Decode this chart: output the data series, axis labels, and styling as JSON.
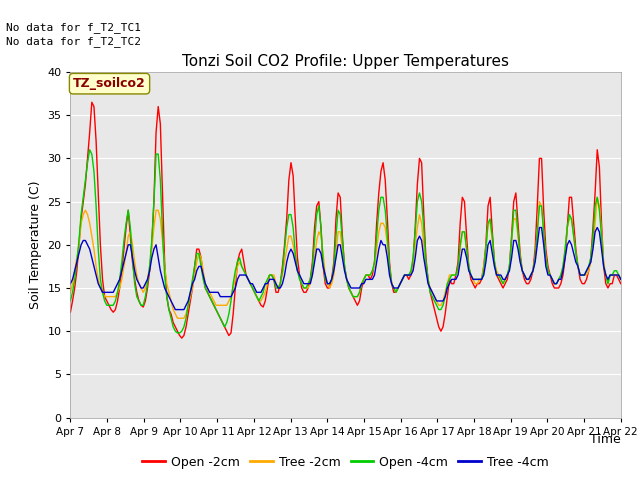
{
  "title": "Tonzi Soil CO2 Profile: Upper Temperatures",
  "ylabel": "Soil Temperature (C)",
  "xlabel": "Time",
  "no_data_text": [
    "No data for f_T2_TC1",
    "No data for f_T2_TC2"
  ],
  "legend_label_text": "TZ_soilco2",
  "ylim": [
    0,
    40
  ],
  "yticks": [
    0,
    5,
    10,
    15,
    20,
    25,
    30,
    35,
    40
  ],
  "x_labels": [
    "Apr 7",
    "Apr 8",
    "Apr 9",
    "Apr 10",
    "Apr 11",
    "Apr 12",
    "Apr 13",
    "Apr 14",
    "Apr 15",
    "Apr 16",
    "Apr 17",
    "Apr 18",
    "Apr 19",
    "Apr 20",
    "Apr 21",
    "Apr 22"
  ],
  "bg_color": "#e8e8e8",
  "legend_entries": [
    "Open -2cm",
    "Tree -2cm",
    "Open -4cm",
    "Tree -4cm"
  ],
  "legend_colors": [
    "#ff0000",
    "#ffaa00",
    "#00cc00",
    "#0000cc"
  ],
  "open_2cm": [
    12.2,
    13.5,
    15.0,
    17.0,
    20.0,
    23.0,
    25.0,
    27.0,
    30.0,
    33.0,
    36.5,
    36.0,
    32.0,
    26.0,
    20.0,
    16.0,
    14.0,
    13.5,
    13.0,
    12.5,
    12.2,
    12.5,
    13.5,
    15.0,
    17.0,
    19.5,
    22.0,
    24.0,
    21.0,
    18.0,
    16.0,
    14.5,
    13.5,
    13.0,
    12.8,
    13.5,
    15.0,
    17.0,
    20.0,
    25.0,
    33.0,
    36.0,
    34.0,
    26.0,
    18.0,
    14.0,
    12.5,
    12.0,
    11.0,
    10.5,
    10.0,
    9.5,
    9.2,
    9.5,
    10.5,
    12.0,
    13.5,
    15.0,
    17.5,
    19.5,
    19.5,
    18.5,
    16.5,
    15.0,
    14.5,
    14.0,
    13.5,
    13.0,
    12.5,
    12.0,
    11.5,
    11.0,
    10.5,
    10.0,
    9.5,
    9.8,
    12.0,
    15.0,
    18.0,
    19.0,
    19.5,
    18.0,
    16.5,
    16.0,
    15.5,
    15.0,
    14.5,
    14.0,
    13.5,
    13.0,
    12.8,
    13.5,
    15.0,
    16.5,
    16.5,
    16.0,
    14.5,
    14.5,
    15.5,
    17.5,
    20.0,
    23.0,
    27.5,
    29.5,
    28.0,
    23.0,
    18.5,
    16.5,
    15.0,
    14.5,
    14.5,
    15.0,
    16.0,
    18.0,
    22.0,
    24.5,
    25.0,
    22.0,
    17.5,
    15.5,
    15.0,
    15.0,
    16.0,
    18.0,
    23.0,
    26.0,
    25.5,
    21.0,
    17.5,
    16.0,
    15.0,
    14.5,
    14.0,
    13.5,
    13.0,
    13.5,
    15.0,
    16.0,
    16.5,
    16.5,
    16.0,
    16.5,
    18.0,
    22.5,
    26.0,
    28.5,
    29.5,
    27.5,
    23.0,
    18.0,
    15.5,
    14.5,
    14.5,
    15.0,
    15.5,
    16.0,
    16.5,
    16.5,
    16.0,
    16.5,
    18.0,
    22.0,
    27.0,
    30.0,
    29.5,
    23.5,
    18.5,
    16.0,
    14.5,
    13.5,
    12.5,
    11.5,
    10.5,
    10.0,
    10.5,
    12.0,
    14.0,
    16.0,
    15.5,
    15.5,
    16.5,
    18.0,
    22.5,
    25.5,
    25.0,
    21.0,
    17.5,
    16.0,
    15.5,
    15.0,
    15.5,
    15.5,
    16.0,
    17.5,
    20.0,
    24.5,
    25.5,
    21.5,
    18.0,
    16.5,
    16.0,
    15.5,
    15.0,
    15.5,
    16.0,
    17.5,
    21.0,
    25.0,
    26.0,
    22.5,
    19.0,
    17.0,
    16.0,
    15.5,
    15.5,
    16.0,
    17.0,
    19.5,
    24.5,
    30.0,
    30.0,
    24.0,
    19.5,
    17.5,
    16.5,
    15.5,
    15.0,
    15.0,
    15.0,
    15.5,
    16.5,
    18.5,
    22.0,
    25.5,
    25.5,
    22.5,
    19.5,
    17.5,
    16.0,
    15.5,
    15.5,
    16.0,
    17.0,
    18.5,
    22.0,
    26.0,
    31.0,
    29.0,
    22.5,
    17.5,
    15.5,
    15.0,
    15.5,
    15.5,
    16.5,
    16.5,
    16.0,
    15.5
  ],
  "tree_2cm": [
    14.5,
    15.5,
    17.0,
    18.5,
    20.0,
    22.5,
    23.5,
    24.0,
    23.5,
    22.5,
    21.0,
    19.5,
    17.5,
    16.0,
    15.0,
    14.5,
    14.0,
    14.0,
    14.0,
    14.0,
    14.0,
    14.0,
    14.5,
    15.0,
    16.0,
    17.5,
    19.0,
    21.0,
    21.5,
    20.0,
    18.0,
    16.5,
    15.5,
    15.0,
    14.5,
    15.0,
    16.0,
    17.5,
    19.5,
    22.0,
    24.0,
    24.0,
    23.0,
    20.5,
    17.5,
    15.5,
    14.5,
    13.5,
    12.5,
    12.0,
    11.5,
    11.5,
    11.5,
    11.5,
    12.0,
    13.0,
    14.0,
    15.0,
    16.5,
    18.0,
    19.0,
    18.5,
    17.0,
    15.5,
    15.0,
    14.5,
    14.0,
    13.5,
    13.0,
    13.0,
    13.0,
    13.0,
    13.0,
    13.0,
    13.5,
    14.0,
    15.0,
    16.0,
    17.5,
    18.0,
    17.5,
    17.0,
    16.5,
    16.0,
    15.5,
    15.0,
    14.5,
    14.0,
    13.5,
    13.5,
    14.0,
    14.5,
    15.5,
    16.5,
    16.5,
    16.5,
    15.5,
    15.0,
    15.5,
    16.5,
    18.0,
    19.5,
    21.0,
    21.0,
    20.0,
    18.5,
    17.0,
    16.5,
    15.5,
    15.0,
    15.0,
    15.0,
    15.5,
    16.5,
    18.5,
    20.5,
    21.5,
    21.0,
    19.0,
    16.5,
    15.5,
    15.0,
    15.5,
    16.5,
    19.0,
    21.5,
    21.5,
    19.5,
    17.5,
    16.0,
    15.0,
    14.5,
    14.0,
    14.0,
    14.0,
    14.5,
    15.5,
    16.0,
    16.5,
    16.5,
    16.5,
    17.0,
    17.5,
    19.5,
    21.5,
    22.5,
    22.5,
    22.0,
    20.0,
    17.5,
    15.5,
    15.0,
    14.5,
    15.0,
    15.5,
    16.0,
    16.5,
    16.5,
    16.5,
    16.5,
    17.5,
    20.0,
    22.0,
    23.5,
    22.5,
    20.0,
    17.5,
    16.0,
    15.0,
    14.5,
    14.0,
    13.5,
    13.0,
    13.0,
    13.5,
    14.5,
    15.5,
    16.5,
    16.5,
    16.5,
    16.5,
    17.0,
    19.5,
    21.5,
    21.5,
    19.5,
    17.5,
    16.5,
    16.0,
    15.5,
    15.5,
    16.0,
    16.0,
    17.5,
    19.5,
    22.5,
    22.5,
    20.5,
    18.0,
    17.0,
    16.5,
    16.0,
    15.5,
    16.0,
    16.5,
    17.5,
    20.5,
    23.0,
    23.0,
    21.0,
    18.5,
    17.0,
    16.5,
    16.0,
    16.0,
    16.5,
    17.0,
    18.5,
    21.5,
    25.0,
    24.5,
    21.5,
    18.5,
    17.0,
    16.5,
    16.0,
    15.5,
    15.5,
    16.0,
    16.5,
    17.5,
    19.5,
    22.0,
    23.0,
    23.0,
    21.0,
    19.0,
    17.5,
    16.5,
    16.5,
    16.5,
    16.5,
    17.0,
    18.0,
    20.0,
    22.5,
    25.5,
    24.5,
    21.5,
    18.0,
    16.5,
    15.5,
    16.5,
    16.5,
    16.5,
    16.5,
    16.5,
    16.0
  ],
  "open_4cm": [
    13.5,
    14.5,
    16.0,
    18.0,
    20.5,
    23.5,
    25.5,
    27.5,
    29.5,
    31.0,
    30.5,
    28.5,
    24.5,
    19.5,
    16.0,
    14.5,
    13.5,
    13.0,
    13.0,
    13.0,
    13.0,
    13.5,
    14.5,
    16.0,
    18.0,
    20.5,
    22.5,
    24.0,
    22.0,
    18.5,
    15.5,
    14.0,
    13.5,
    13.0,
    13.0,
    14.0,
    15.5,
    17.5,
    20.5,
    25.0,
    30.5,
    30.5,
    27.5,
    21.5,
    16.5,
    14.0,
    12.5,
    11.5,
    10.5,
    10.0,
    9.8,
    9.8,
    10.0,
    10.5,
    11.5,
    13.0,
    14.5,
    16.0,
    17.5,
    19.0,
    19.0,
    17.5,
    16.0,
    15.0,
    14.5,
    14.0,
    13.5,
    13.0,
    12.5,
    12.0,
    11.5,
    11.0,
    10.5,
    11.0,
    12.0,
    13.5,
    15.5,
    17.0,
    18.0,
    18.5,
    17.5,
    17.0,
    16.5,
    16.0,
    15.5,
    15.0,
    14.5,
    14.0,
    13.5,
    14.0,
    14.5,
    15.5,
    16.0,
    16.5,
    16.5,
    16.0,
    15.0,
    15.0,
    15.5,
    17.0,
    19.5,
    22.0,
    23.5,
    23.5,
    22.0,
    19.0,
    17.0,
    16.0,
    15.5,
    15.0,
    15.0,
    15.5,
    16.0,
    17.5,
    20.5,
    23.5,
    24.5,
    22.0,
    18.0,
    16.0,
    15.5,
    15.5,
    16.0,
    17.5,
    21.0,
    24.0,
    23.5,
    20.5,
    17.5,
    16.0,
    15.0,
    14.5,
    14.0,
    14.0,
    14.0,
    14.5,
    15.5,
    16.0,
    16.5,
    16.5,
    16.5,
    17.0,
    18.0,
    21.0,
    24.0,
    25.5,
    25.5,
    24.0,
    21.0,
    17.5,
    15.5,
    15.0,
    14.5,
    15.0,
    15.5,
    16.0,
    16.5,
    16.5,
    16.5,
    17.0,
    18.5,
    21.5,
    25.0,
    26.0,
    25.0,
    22.0,
    18.0,
    16.0,
    14.5,
    14.0,
    13.5,
    13.0,
    12.5,
    12.5,
    13.0,
    14.0,
    15.5,
    16.0,
    16.5,
    16.5,
    16.5,
    17.5,
    20.0,
    21.5,
    21.5,
    19.5,
    17.5,
    16.5,
    16.0,
    16.0,
    16.0,
    16.0,
    16.0,
    17.0,
    19.5,
    22.5,
    23.0,
    21.0,
    18.0,
    16.5,
    16.5,
    16.0,
    15.5,
    16.0,
    16.5,
    17.5,
    20.5,
    24.0,
    24.0,
    21.5,
    18.5,
    17.0,
    16.5,
    16.0,
    16.0,
    16.5,
    17.0,
    18.5,
    21.5,
    24.5,
    24.5,
    21.5,
    18.5,
    17.0,
    16.5,
    16.0,
    15.5,
    15.5,
    16.0,
    16.5,
    17.5,
    19.5,
    22.0,
    23.5,
    23.0,
    21.0,
    19.0,
    17.5,
    16.5,
    16.5,
    16.5,
    17.0,
    17.5,
    18.5,
    21.0,
    24.5,
    25.5,
    24.0,
    21.0,
    17.5,
    16.5,
    15.5,
    16.5,
    16.5,
    17.0,
    17.0,
    16.5,
    16.0
  ],
  "tree_4cm": [
    15.5,
    16.0,
    17.0,
    18.0,
    19.0,
    20.0,
    20.5,
    20.5,
    20.0,
    19.5,
    18.5,
    17.5,
    16.5,
    15.5,
    15.0,
    14.5,
    14.5,
    14.5,
    14.5,
    14.5,
    14.5,
    15.0,
    15.5,
    16.0,
    17.0,
    18.0,
    19.0,
    20.0,
    20.0,
    18.5,
    17.0,
    16.0,
    15.5,
    15.0,
    15.0,
    15.5,
    16.0,
    17.0,
    18.5,
    19.5,
    20.0,
    18.5,
    17.0,
    16.0,
    15.0,
    14.5,
    14.0,
    13.5,
    13.0,
    12.5,
    12.5,
    12.5,
    12.5,
    12.5,
    13.0,
    13.5,
    14.5,
    15.5,
    16.0,
    17.0,
    17.5,
    17.5,
    16.5,
    15.5,
    15.0,
    14.5,
    14.5,
    14.5,
    14.5,
    14.5,
    14.0,
    14.0,
    14.0,
    14.0,
    14.0,
    14.0,
    14.5,
    15.0,
    16.0,
    16.5,
    16.5,
    16.5,
    16.5,
    16.0,
    15.5,
    15.5,
    15.0,
    14.5,
    14.5,
    14.5,
    15.0,
    15.5,
    15.5,
    16.0,
    16.0,
    16.0,
    15.5,
    15.0,
    15.0,
    15.5,
    16.5,
    18.0,
    19.0,
    19.5,
    19.0,
    18.0,
    17.0,
    16.5,
    16.0,
    15.5,
    15.5,
    15.5,
    15.5,
    16.5,
    18.0,
    19.5,
    19.5,
    19.0,
    17.5,
    16.5,
    15.5,
    15.5,
    16.0,
    17.0,
    18.5,
    20.0,
    20.0,
    18.5,
    17.0,
    16.0,
    15.5,
    15.0,
    15.0,
    15.0,
    15.0,
    15.0,
    15.5,
    15.5,
    16.0,
    16.0,
    16.0,
    16.0,
    16.5,
    18.0,
    19.5,
    20.5,
    20.0,
    20.0,
    18.5,
    16.5,
    15.5,
    15.0,
    15.0,
    15.0,
    15.5,
    16.0,
    16.5,
    16.5,
    16.5,
    16.5,
    17.0,
    18.5,
    20.5,
    21.0,
    20.5,
    18.5,
    17.0,
    15.5,
    15.0,
    14.5,
    14.0,
    13.5,
    13.5,
    13.5,
    13.5,
    14.0,
    15.0,
    15.5,
    16.0,
    16.0,
    16.0,
    16.5,
    18.0,
    19.5,
    19.5,
    18.5,
    17.0,
    16.5,
    16.0,
    16.0,
    16.0,
    16.0,
    16.0,
    16.5,
    18.0,
    20.0,
    20.5,
    19.0,
    17.5,
    16.5,
    16.5,
    16.5,
    16.0,
    16.0,
    16.5,
    17.0,
    18.5,
    20.5,
    20.5,
    19.5,
    18.0,
    17.0,
    16.5,
    16.0,
    16.0,
    16.5,
    17.0,
    18.0,
    20.0,
    22.0,
    22.0,
    20.0,
    17.5,
    16.5,
    16.5,
    16.0,
    15.5,
    15.5,
    16.0,
    16.0,
    17.0,
    18.5,
    20.0,
    20.5,
    20.0,
    19.0,
    18.0,
    17.5,
    16.5,
    16.5,
    16.5,
    17.0,
    17.5,
    18.0,
    19.5,
    21.5,
    22.0,
    21.5,
    19.5,
    17.5,
    16.5,
    16.0,
    16.5,
    16.5,
    16.5,
    16.5,
    16.5,
    16.0
  ]
}
